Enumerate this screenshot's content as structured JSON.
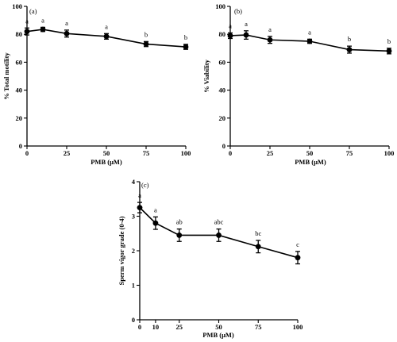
{
  "chart_data": [
    {
      "type": "line",
      "panel_label": "(a)",
      "xlabel": "PMB (μM)",
      "ylabel": "% Total motility",
      "xlim": [
        0,
        100
      ],
      "ylim": [
        0,
        100
      ],
      "xticks": [
        0,
        25,
        50,
        75,
        100
      ],
      "yticks": [
        0,
        20,
        40,
        60,
        80,
        100
      ],
      "x": [
        0,
        10,
        25,
        50,
        75,
        100
      ],
      "y": [
        82,
        83.5,
        80.5,
        78.5,
        73,
        71
      ],
      "err": [
        2.5,
        1.5,
        2.5,
        2,
        1.8,
        1.8
      ],
      "annotations": [
        "a",
        "a",
        "a",
        "a",
        "b",
        "b"
      ]
    },
    {
      "type": "line",
      "panel_label": "(b)",
      "xlabel": "PMB (μM)",
      "ylabel": "% Viability",
      "xlim": [
        0,
        100
      ],
      "ylim": [
        0,
        100
      ],
      "xticks": [
        0,
        25,
        50,
        75,
        100
      ],
      "yticks": [
        0,
        20,
        40,
        60,
        80,
        100
      ],
      "x": [
        0,
        10,
        25,
        50,
        75,
        100
      ],
      "y": [
        79,
        79.5,
        76,
        75,
        69,
        68
      ],
      "err": [
        2,
        3,
        2.5,
        1.5,
        2.5,
        2
      ],
      "annotations": [
        "a",
        "a",
        "a",
        "a",
        "b",
        "b"
      ]
    },
    {
      "type": "line",
      "panel_label": "(c)",
      "xlabel": "PMB (μM)",
      "ylabel": "Sperm vigor grade (0-4)",
      "xlim": [
        0,
        100
      ],
      "ylim": [
        0,
        4
      ],
      "xticks": [
        0,
        10,
        25,
        50,
        75,
        100
      ],
      "yticks": [
        0,
        1,
        2,
        3,
        4
      ],
      "x": [
        0,
        10,
        25,
        50,
        75,
        100
      ],
      "y": [
        3.25,
        2.8,
        2.45,
        2.45,
        2.12,
        1.8
      ],
      "err": [
        0.15,
        0.18,
        0.18,
        0.18,
        0.18,
        0.18
      ],
      "annotations": [
        "a",
        "a",
        "ab",
        "abc",
        "bc",
        "c"
      ]
    }
  ]
}
